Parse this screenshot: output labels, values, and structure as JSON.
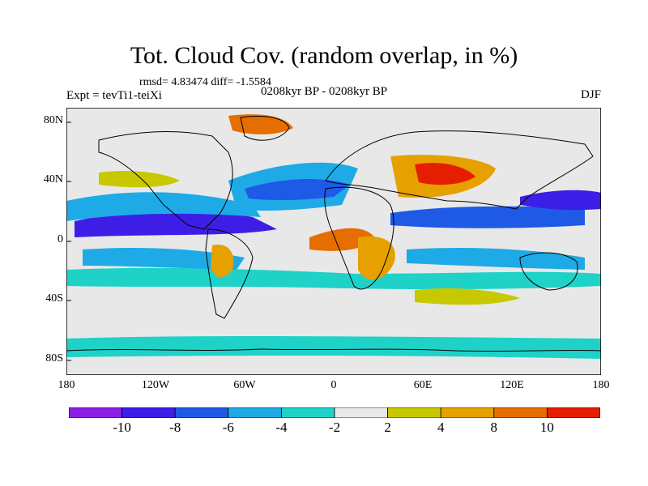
{
  "title": "Tot. Cloud Cov. (random overlap, in %)",
  "stats": "rmsd= 4.83474 diff= -1.5584",
  "experiment": "Expt = tevTi1-teiXi",
  "period": "0208kyr BP - 0208kyr BP",
  "season": "DJF",
  "lat_labels": [
    "80N",
    "40N",
    "0",
    "40S",
    "80S"
  ],
  "lat_values": [
    80,
    40,
    0,
    -40,
    -80
  ],
  "lon_labels": [
    "180",
    "120W",
    "60W",
    "0",
    "60E",
    "120E",
    "180"
  ],
  "lon_values": [
    -180,
    -120,
    -60,
    0,
    60,
    120,
    180
  ],
  "colorbar": {
    "colors": [
      "#8c1ee6",
      "#3c1ee6",
      "#1e5ae6",
      "#1eaae6",
      "#1ed2c8",
      "#e8e8e8",
      "#c8c800",
      "#e6a000",
      "#e66e00",
      "#e61e00"
    ],
    "labels": [
      "-10",
      "-8",
      "-6",
      "-4",
      "-2",
      "2",
      "4",
      "8",
      "10"
    ]
  }
}
